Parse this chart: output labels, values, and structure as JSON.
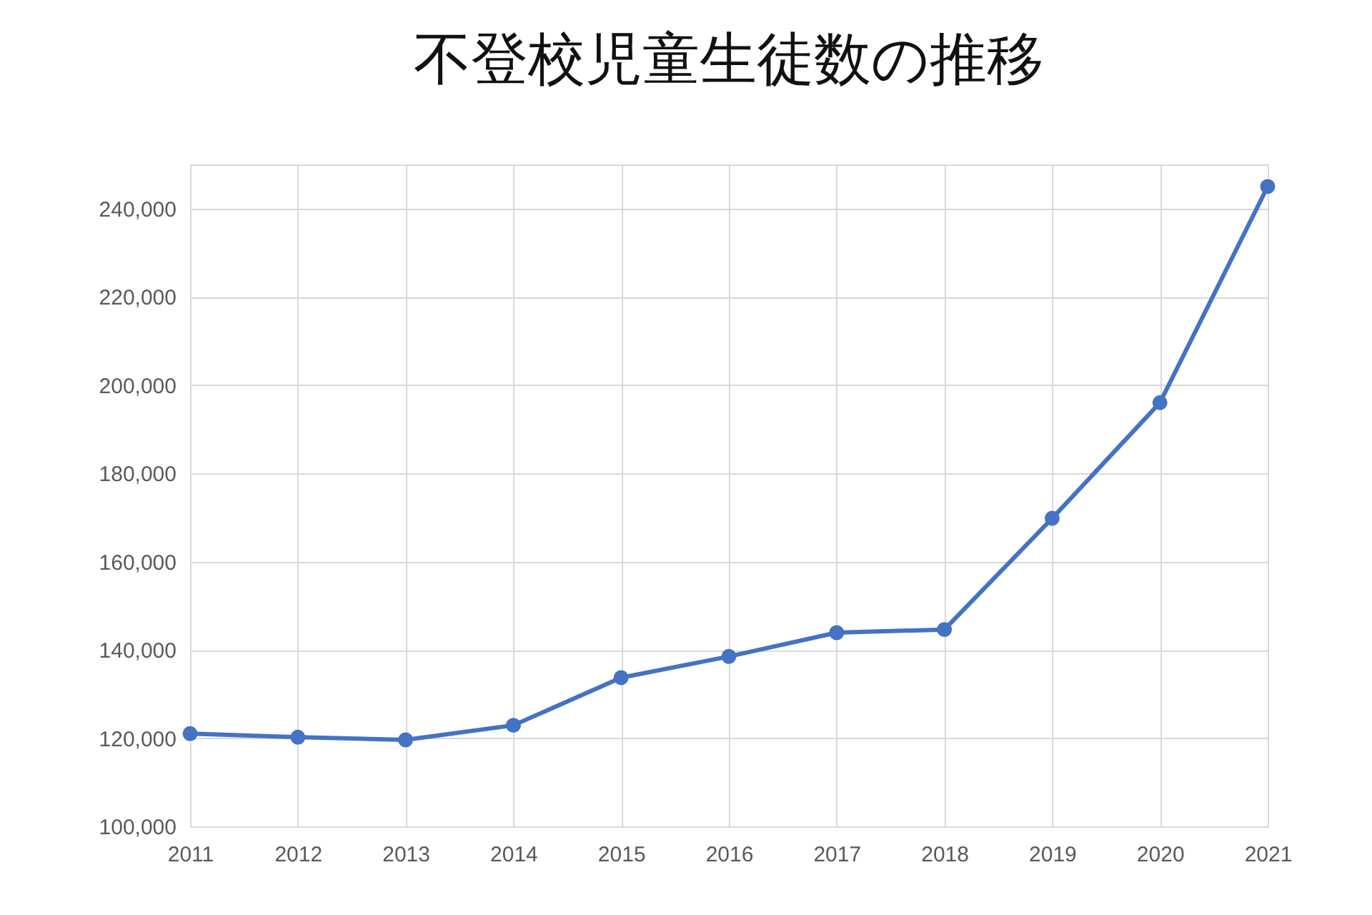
{
  "chart_data": {
    "type": "line",
    "title": "不登校児童生徒数の推移",
    "x": [
      2011,
      2012,
      2013,
      2014,
      2015,
      2016,
      2017,
      2018,
      2019,
      2020,
      2021
    ],
    "series": [
      {
        "color": "#4472c4",
        "values": [
          121000,
          120200,
          119600,
          122900,
          133700,
          138500,
          143900,
          144600,
          169800,
          196000,
          245000
        ]
      }
    ],
    "xlim": [
      2011,
      2021
    ],
    "xticks": [
      2011,
      2012,
      2013,
      2014,
      2015,
      2016,
      2017,
      2018,
      2019,
      2020,
      2021
    ],
    "ylim": [
      100000,
      250000
    ],
    "yticks": [
      {
        "value": 100000,
        "label": "100,000"
      },
      {
        "value": 120000,
        "label": "120,000"
      },
      {
        "value": 140000,
        "label": "140,000"
      },
      {
        "value": 160000,
        "label": "160,000"
      },
      {
        "value": 180000,
        "label": "180,000"
      },
      {
        "value": 200000,
        "label": "200,000"
      },
      {
        "value": 220000,
        "label": "220,000"
      },
      {
        "value": 240000,
        "label": "240,000"
      }
    ],
    "grid": true,
    "marker": "circle",
    "line_style": "solid",
    "legend": false
  }
}
